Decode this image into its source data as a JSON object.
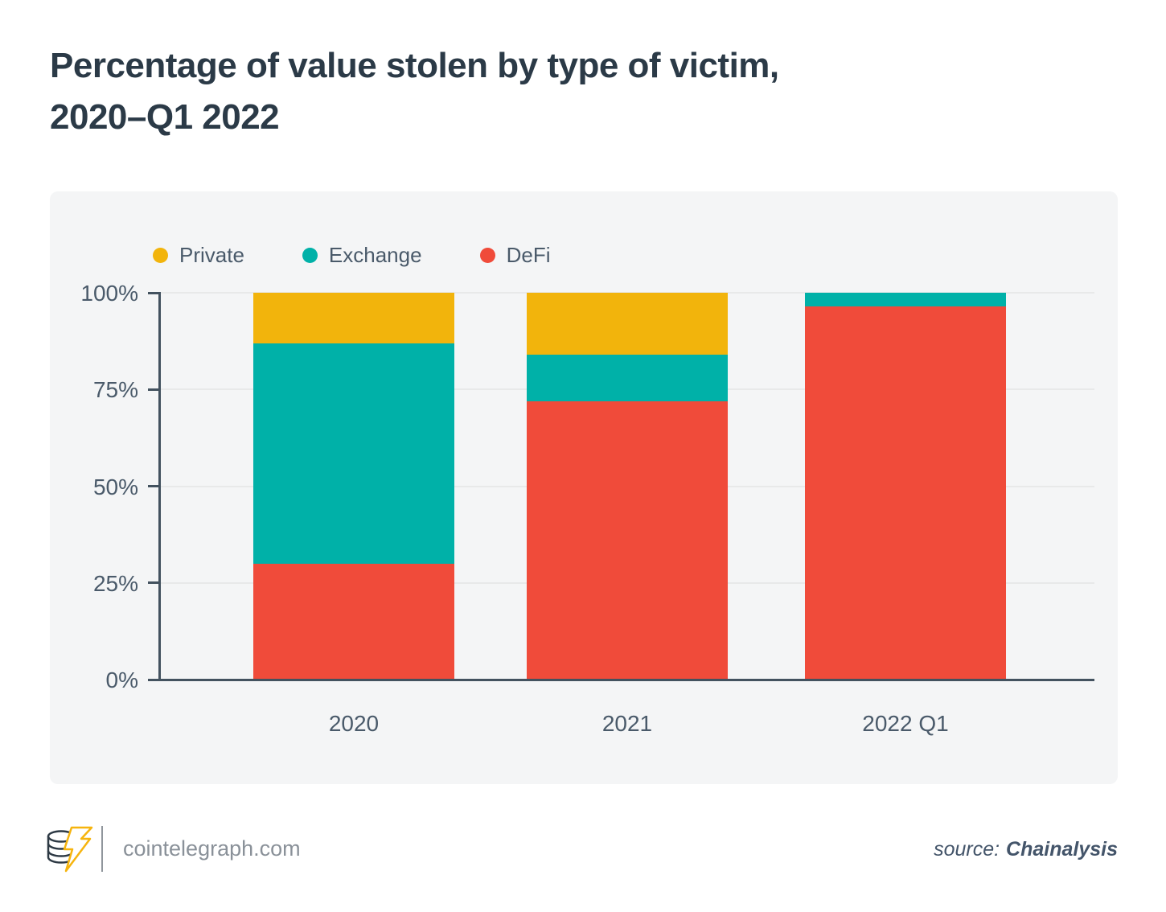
{
  "header": {
    "title_line1": "Percentage of value stolen by type of victim,",
    "title_line2": "2020–Q1 2022"
  },
  "chart_data": {
    "type": "bar",
    "variant": "stacked-100-percent",
    "title": "Percentage of value stolen by type of victim, 2020–Q1 2022",
    "categories": [
      "2020",
      "2021",
      "2022 Q1"
    ],
    "series": [
      {
        "name": "Private",
        "color": "#f2b40c",
        "values": [
          13,
          16,
          0
        ]
      },
      {
        "name": "Exchange",
        "color": "#00b1a8",
        "values": [
          57,
          12,
          3.5
        ]
      },
      {
        "name": "DeFi",
        "color": "#f04b3a",
        "values": [
          30,
          72,
          96.5
        ]
      }
    ],
    "stack_order_bottom_to_top": [
      "DeFi",
      "Exchange",
      "Private"
    ],
    "ylim": [
      0,
      100
    ],
    "y_ticks": [
      {
        "value": 0,
        "label": "0%"
      },
      {
        "value": 25,
        "label": "25%"
      },
      {
        "value": 50,
        "label": "50%"
      },
      {
        "value": 75,
        "label": "75%"
      },
      {
        "value": 100,
        "label": "100%"
      }
    ],
    "grid": true,
    "legend_position": "top-left"
  },
  "footer": {
    "site": "cointelegraph.com",
    "source_label": "source:",
    "source_value": "Chainalysis"
  }
}
